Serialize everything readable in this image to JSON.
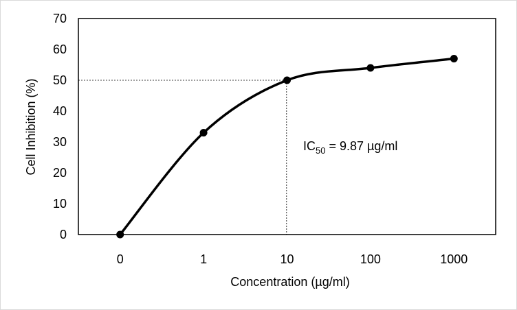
{
  "chart_data": {
    "type": "line",
    "x_categories": [
      "0",
      "1",
      "10",
      "100",
      "1000"
    ],
    "x_label": "Concentration (µg/ml)",
    "y_label": "Cell Inhibition (%)",
    "ylim": [
      0,
      70
    ],
    "y_ticks": [
      0,
      10,
      20,
      30,
      40,
      50,
      60,
      70
    ],
    "series": [
      {
        "values": [
          0,
          33,
          50,
          54,
          57
        ]
      }
    ],
    "smooth": true,
    "marker": "circle",
    "line_color": "#000000",
    "grid": false,
    "reference_line": {
      "y": 50,
      "x": 9.87,
      "style": "dotted"
    },
    "annotation": {
      "prefix": "IC",
      "subscript": "50",
      "suffix": " = 9.87 µg/ml"
    }
  }
}
